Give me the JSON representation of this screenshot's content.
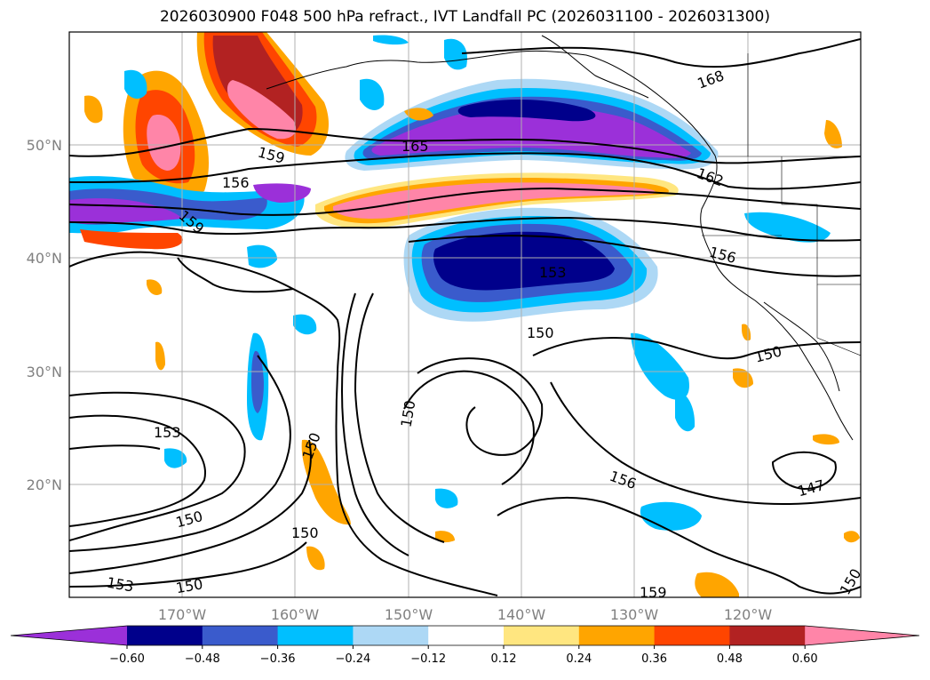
{
  "title": "2026030900 F048 500 hPa refract., IVT Landfall PC (2026031100 - 2026031300)",
  "latitude_labels": [
    "50°N",
    "40°N",
    "30°N",
    "20°N"
  ],
  "longitude_labels": [
    "170°W",
    "160°W",
    "150°W",
    "140°W",
    "130°W",
    "120°W"
  ],
  "colorbar": {
    "ticks": [
      "−0.60",
      "−0.48",
      "−0.36",
      "−0.24",
      "−0.12",
      "0.12",
      "0.24",
      "0.36",
      "0.48",
      "0.60"
    ],
    "colors": [
      "#9b30d9",
      "#00008b",
      "#3a5bcc",
      "#00bfff",
      "#add8f5",
      "#ffffff",
      "#ffe680",
      "#ffa500",
      "#ff4500",
      "#b22222",
      "#ff85a8"
    ]
  },
  "contour_labels": [
    "165",
    "168",
    "162",
    "159",
    "156",
    "159",
    "156",
    "153",
    "150",
    "150",
    "150",
    "153",
    "150",
    "150",
    "150",
    "153",
    "150",
    "156",
    "147",
    "159",
    "150"
  ]
}
